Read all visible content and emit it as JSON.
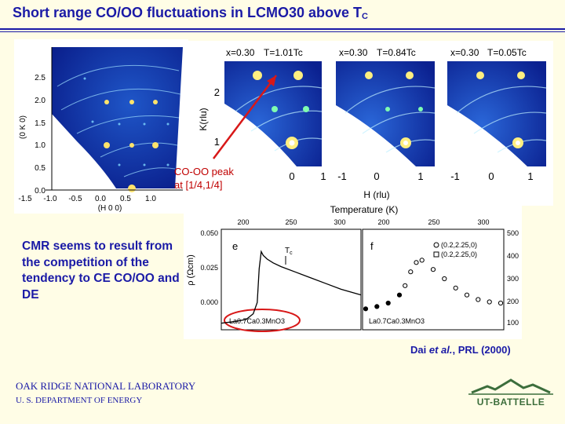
{
  "slide": {
    "title": "Short range CO/OO fluctuations in LCMO30 above T",
    "title_sub": "C",
    "peak_label_line1": "CO-OO peak",
    "peak_label_line2": "at [1/4,1/4]",
    "body_text": "CMR seems to result from the competition of the tendency to CE CO/OO and DE",
    "citation_pre": "Dai ",
    "citation_italic": "et al.",
    "citation_post": ", PRL (2000)",
    "org_name": "OAK RIDGE NATIONAL LABORATORY",
    "org_sub": "U. S. DEPARTMENT OF ENERGY",
    "logo_text": "UT-BATTELLE"
  },
  "colors": {
    "title": "#1a1aa6",
    "background": "#fffde6",
    "annotation": "#c00000",
    "logo": "#3c6e3c"
  },
  "left_map": {
    "y_ticks": [
      "2.5",
      "2.0",
      "1.5",
      "1.0",
      "0.5",
      "0.0"
    ],
    "x_ticks": [
      "-1.5",
      "-1.0",
      "-0.5",
      "0.0",
      "0.5",
      "1.0"
    ],
    "ylabel": "(0 K 0)",
    "xlabel": "(H 0 0)"
  },
  "maps": {
    "panels": [
      {
        "x_label": "x=0.30",
        "t_label": "T=1.01Tc"
      },
      {
        "x_label": "x=0.30",
        "t_label": "T=0.84Tc"
      },
      {
        "x_label": "x=0.30",
        "t_label": "T=0.05Tc"
      }
    ],
    "k_ticks": [
      "2",
      "1"
    ],
    "k_label": "K(rlu)",
    "h_ticks": [
      [
        "0",
        "1"
      ],
      [
        "-1",
        "0",
        "1"
      ],
      [
        "-1",
        "0",
        "1"
      ]
    ],
    "h_label": "H (rlu)"
  },
  "chart_data": {
    "type": "line",
    "title": "Temperature (K)",
    "top_ticks_e": [
      "200",
      "250",
      "300"
    ],
    "top_ticks_f": [
      "200",
      "250",
      "300"
    ],
    "left_ticks": [
      "0.050",
      "0.025",
      "0.000"
    ],
    "right_ticks": [
      "500",
      "400",
      "300",
      "200",
      "100"
    ],
    "ylabel": "ρ (Ωcm)",
    "panel_e_label": "e",
    "panel_f_label": "f",
    "tc_label": "T",
    "tc_sub": "c",
    "compound_e": "La0.7Ca0.3MnO3",
    "compound_f": "La0.7Ca0.3MnO3",
    "legend_circle": "(0.2,2.25,0)",
    "legend_square": "(0.2,2.25,0)",
    "series": [
      {
        "name": "resistivity",
        "x": [
          180,
          195,
          205,
          212,
          216,
          218,
          220,
          222,
          226,
          232,
          240,
          255,
          270,
          285,
          300,
          320
        ],
        "y": [
          0.001,
          0.002,
          0.003,
          0.006,
          0.012,
          0.03,
          0.039,
          0.037,
          0.035,
          0.033,
          0.031,
          0.028,
          0.025,
          0.022,
          0.019,
          0.016
        ]
      },
      {
        "name": "(0.2,2.25,0)",
        "x": [
          180,
          190,
          200,
          210,
          215,
          220,
          225,
          230,
          240,
          250,
          260,
          270,
          280,
          290,
          300
        ],
        "y": [
          170,
          180,
          195,
          230,
          270,
          330,
          370,
          380,
          340,
          300,
          260,
          230,
          210,
          200,
          195
        ]
      }
    ]
  }
}
